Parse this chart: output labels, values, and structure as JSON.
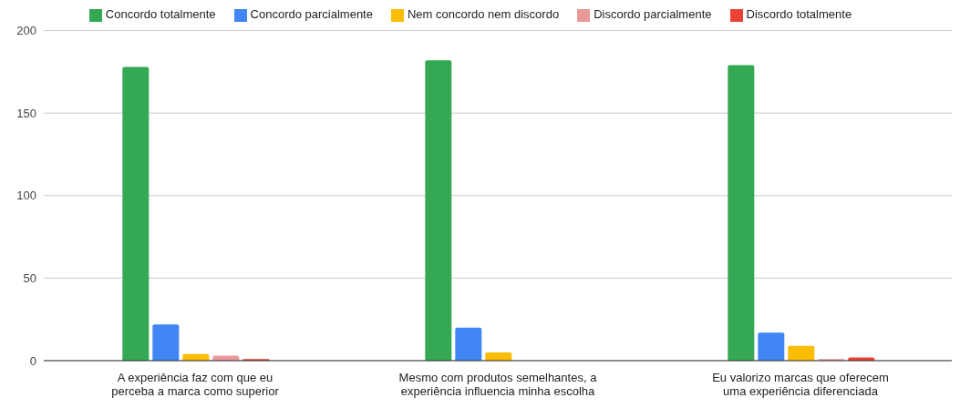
{
  "chart_data": {
    "type": "bar",
    "categories": [
      "A experiência faz com que eu perceba a marca como superior",
      "Mesmo com produtos semelhantes, a experiência influencia minha escolha",
      "Eu valorizo marcas que oferecem uma experiência diferenciada"
    ],
    "series": [
      {
        "name": "Concordo totalmente",
        "color": "#34a853",
        "values": [
          178,
          182,
          179
        ]
      },
      {
        "name": "Concordo parcialmente",
        "color": "#4285f4",
        "values": [
          22,
          20,
          17
        ]
      },
      {
        "name": "Nem concordo nem discordo",
        "color": "#fbbc04",
        "values": [
          4,
          5,
          9
        ]
      },
      {
        "name": "Discordo parcialmente",
        "color": "#ea9999",
        "values": [
          3,
          0,
          1
        ]
      },
      {
        "name": "Discordo totalmente",
        "color": "#ea4335",
        "values": [
          1,
          0,
          2
        ]
      }
    ],
    "ylim": [
      0,
      200
    ],
    "yticks": [
      0,
      50,
      100,
      150,
      200
    ],
    "grid": "y",
    "legend": "top"
  }
}
